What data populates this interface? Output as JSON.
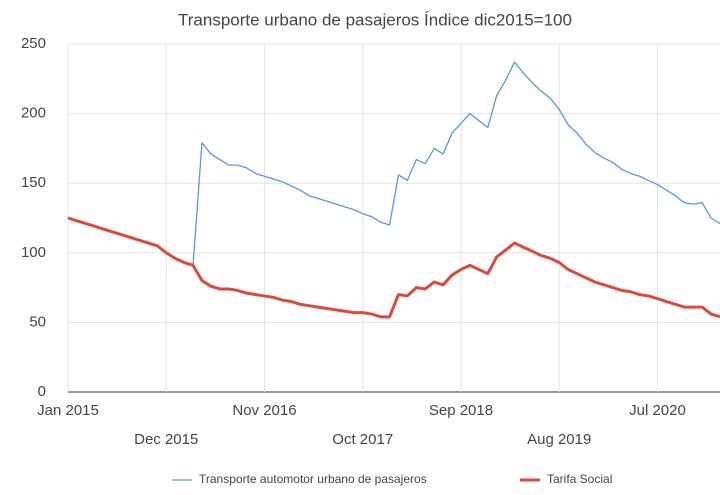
{
  "chart_data": {
    "type": "line",
    "title": "Transporte urbano de pasajeros Índice dic2015=100",
    "x": [
      "2015-01",
      "2015-02",
      "2015-03",
      "2015-04",
      "2015-05",
      "2015-06",
      "2015-07",
      "2015-08",
      "2015-09",
      "2015-10",
      "2015-11",
      "2015-12",
      "2016-01",
      "2016-02",
      "2016-03",
      "2016-04",
      "2016-05",
      "2016-06",
      "2016-07",
      "2016-08",
      "2016-09",
      "2016-10",
      "2016-11",
      "2016-12",
      "2017-01",
      "2017-02",
      "2017-03",
      "2017-04",
      "2017-05",
      "2017-06",
      "2017-07",
      "2017-08",
      "2017-09",
      "2017-10",
      "2017-11",
      "2017-12",
      "2018-01",
      "2018-02",
      "2018-03",
      "2018-04",
      "2018-05",
      "2018-06",
      "2018-07",
      "2018-08",
      "2018-09",
      "2018-10",
      "2018-11",
      "2018-12",
      "2019-01",
      "2019-02",
      "2019-03",
      "2019-04",
      "2019-05",
      "2019-06",
      "2019-07",
      "2019-08",
      "2019-09",
      "2019-10",
      "2019-11",
      "2019-12",
      "2020-01",
      "2020-02",
      "2020-03",
      "2020-04",
      "2020-05",
      "2020-06",
      "2020-07",
      "2020-08",
      "2020-09",
      "2020-10",
      "2020-11",
      "2020-12",
      "2021-01",
      "2021-02"
    ],
    "series": [
      {
        "name": "Transporte automotor urbano de pasajeros",
        "color": "#5b95e8",
        "width": 1.3,
        "values": [
          null,
          null,
          null,
          null,
          null,
          null,
          null,
          null,
          null,
          null,
          null,
          null,
          null,
          null,
          91,
          179,
          171,
          167,
          163,
          163,
          161,
          157,
          155,
          153,
          151,
          148,
          145,
          141,
          139,
          137,
          135,
          133,
          131,
          128,
          126,
          122,
          120,
          156,
          152,
          167,
          164,
          175,
          171,
          186,
          193,
          200,
          195,
          190,
          213,
          224,
          237,
          229,
          222,
          216,
          211,
          203,
          192,
          186,
          178,
          172,
          168,
          165,
          160,
          157,
          155,
          152,
          149,
          145,
          141,
          136,
          135,
          136,
          125,
          121
        ]
      },
      {
        "name": "Tarifa Social",
        "color": "#dc4a3d",
        "width": 3,
        "values": [
          125,
          123,
          121,
          119,
          117,
          115,
          113,
          111,
          109,
          107,
          105,
          100,
          96,
          93,
          91,
          80,
          76,
          74,
          74,
          73,
          71,
          70,
          69,
          68,
          66,
          65,
          63,
          62,
          61,
          60,
          59,
          58,
          57,
          57,
          56,
          54,
          54,
          70,
          69,
          75,
          74,
          79,
          77,
          84,
          88,
          91,
          88,
          85,
          97,
          102,
          107,
          104,
          101,
          98,
          96,
          93,
          88,
          85,
          82,
          79,
          77,
          75,
          73,
          72,
          70,
          69,
          67,
          65,
          63,
          61,
          61,
          61,
          56,
          54
        ]
      }
    ],
    "xlim": [
      "2015-01",
      "2021-02"
    ],
    "xticks": [
      {
        "value": "2015-01",
        "label": "Jan 2015"
      },
      {
        "value": "2015-12",
        "label": "Dec 2015"
      },
      {
        "value": "2016-11",
        "label": "Nov 2016"
      },
      {
        "value": "2017-10",
        "label": "Oct 2017"
      },
      {
        "value": "2018-09",
        "label": "Sep 2018"
      },
      {
        "value": "2019-08",
        "label": "Aug 2019"
      },
      {
        "value": "2020-07",
        "label": "Jul 2020"
      }
    ],
    "ylim": [
      0,
      250
    ],
    "yticks": [
      0,
      50,
      100,
      150,
      200,
      250
    ],
    "grid": true,
    "legend": "bottom"
  }
}
